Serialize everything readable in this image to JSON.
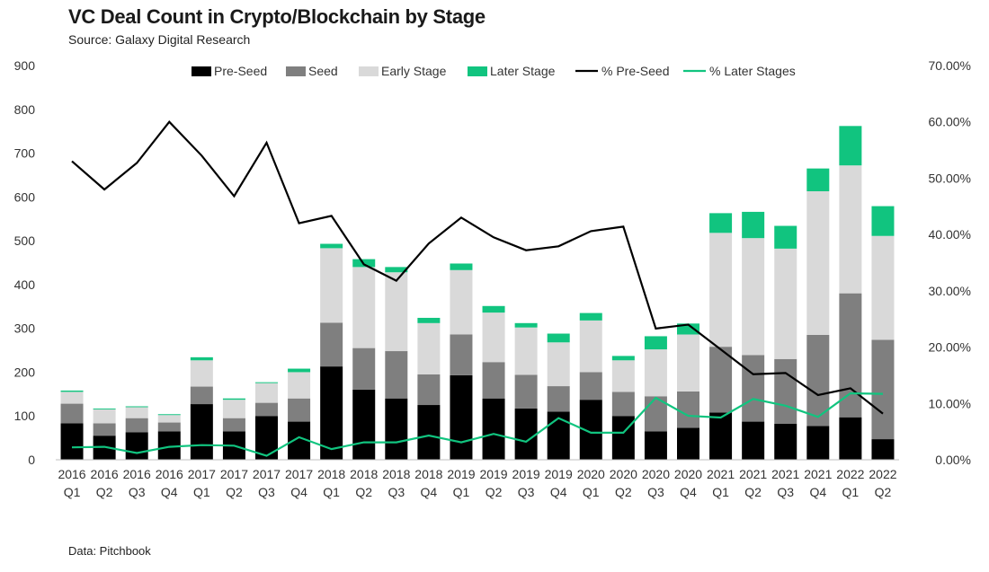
{
  "header": {
    "title": "VC Deal Count in Crypto/Blockchain by Stage",
    "subtitle": "Source: Galaxy Digital Research"
  },
  "footer": {
    "note": "Data: Pitchbook"
  },
  "colors": {
    "pre_seed": "#000000",
    "seed": "#7f7f7f",
    "early_stage": "#d9d9d9",
    "later_stage": "#11c47f",
    "pct_pre_seed_line": "#000000",
    "pct_later_line": "#11c47f"
  },
  "chart_data": {
    "type": "bar",
    "stacked": true,
    "categories": [
      [
        "2016",
        "Q1"
      ],
      [
        "2016",
        "Q2"
      ],
      [
        "2016",
        "Q3"
      ],
      [
        "2016",
        "Q4"
      ],
      [
        "2017",
        "Q1"
      ],
      [
        "2017",
        "Q2"
      ],
      [
        "2017",
        "Q3"
      ],
      [
        "2017",
        "Q4"
      ],
      [
        "2018",
        "Q1"
      ],
      [
        "2018",
        "Q2"
      ],
      [
        "2018",
        "Q3"
      ],
      [
        "2018",
        "Q4"
      ],
      [
        "2019",
        "Q1"
      ],
      [
        "2019",
        "Q2"
      ],
      [
        "2019",
        "Q3"
      ],
      [
        "2019",
        "Q4"
      ],
      [
        "2020",
        "Q1"
      ],
      [
        "2020",
        "Q2"
      ],
      [
        "2020",
        "Q3"
      ],
      [
        "2020",
        "Q4"
      ],
      [
        "2021",
        "Q1"
      ],
      [
        "2021",
        "Q2"
      ],
      [
        "2021",
        "Q3"
      ],
      [
        "2021",
        "Q4"
      ],
      [
        "2022",
        "Q1"
      ],
      [
        "2022",
        "Q2"
      ]
    ],
    "series": [
      {
        "name": "Pre-Seed",
        "kind": "bar",
        "color": "#000000",
        "values": [
          83,
          55,
          63,
          65,
          127,
          65,
          100,
          87,
          213,
          160,
          140,
          125,
          193,
          140,
          117,
          110,
          137,
          100,
          65,
          73,
          108,
          87,
          82,
          77,
          97,
          47
        ]
      },
      {
        "name": "Seed",
        "kind": "bar",
        "color": "#7f7f7f",
        "values": [
          45,
          28,
          32,
          20,
          40,
          30,
          30,
          53,
          100,
          95,
          108,
          70,
          93,
          83,
          77,
          58,
          63,
          55,
          80,
          83,
          150,
          152,
          148,
          208,
          283,
          227
        ]
      },
      {
        "name": "Early Stage",
        "kind": "bar",
        "color": "#d9d9d9",
        "values": [
          27,
          32,
          25,
          17,
          60,
          42,
          45,
          60,
          170,
          185,
          180,
          117,
          147,
          113,
          108,
          100,
          118,
          72,
          107,
          130,
          260,
          267,
          252,
          328,
          292,
          237
        ]
      },
      {
        "name": "Later Stage",
        "kind": "bar",
        "color": "#11c47f",
        "values": [
          3,
          2,
          2,
          2,
          7,
          3,
          2,
          8,
          10,
          18,
          12,
          12,
          15,
          15,
          10,
          20,
          17,
          10,
          30,
          25,
          45,
          60,
          52,
          52,
          90,
          68
        ]
      },
      {
        "name": "% Pre-Seed",
        "kind": "line",
        "axis": "right",
        "color": "#000000",
        "values": [
          53,
          48,
          52.7,
          60,
          54,
          46.8,
          56.3,
          42,
          43.3,
          34.7,
          31.8,
          38.4,
          43,
          39.5,
          37.2,
          37.9,
          40.6,
          41.4,
          23.3,
          24,
          19.6,
          15.2,
          15.4,
          11.5,
          12.7,
          8.2
        ]
      },
      {
        "name": "% Later Stages",
        "kind": "line",
        "axis": "right",
        "color": "#11c47f",
        "values": [
          2.2,
          2.3,
          1.2,
          2.3,
          2.6,
          2.5,
          0.7,
          4,
          1.9,
          3.1,
          3.1,
          4.3,
          3.1,
          4.6,
          3.2,
          7.4,
          4.8,
          4.8,
          11,
          7.8,
          7.5,
          10.8,
          9.6,
          7.6,
          11.8,
          11.7
        ]
      }
    ],
    "legend": [
      "Pre-Seed",
      "Seed",
      "Early Stage",
      "Later Stage",
      "% Pre-Seed",
      "% Later Stages"
    ],
    "legend_position": "top",
    "y_left": {
      "min": 0,
      "max": 900,
      "ticks": [
        "0",
        "100",
        "200",
        "300",
        "400",
        "500",
        "600",
        "700",
        "800",
        "900"
      ]
    },
    "y_right": {
      "min": 0,
      "max": 70,
      "ticks": [
        "0.00%",
        "10.00%",
        "20.00%",
        "30.00%",
        "40.00%",
        "50.00%",
        "60.00%",
        "70.00%"
      ]
    },
    "grid": false
  }
}
